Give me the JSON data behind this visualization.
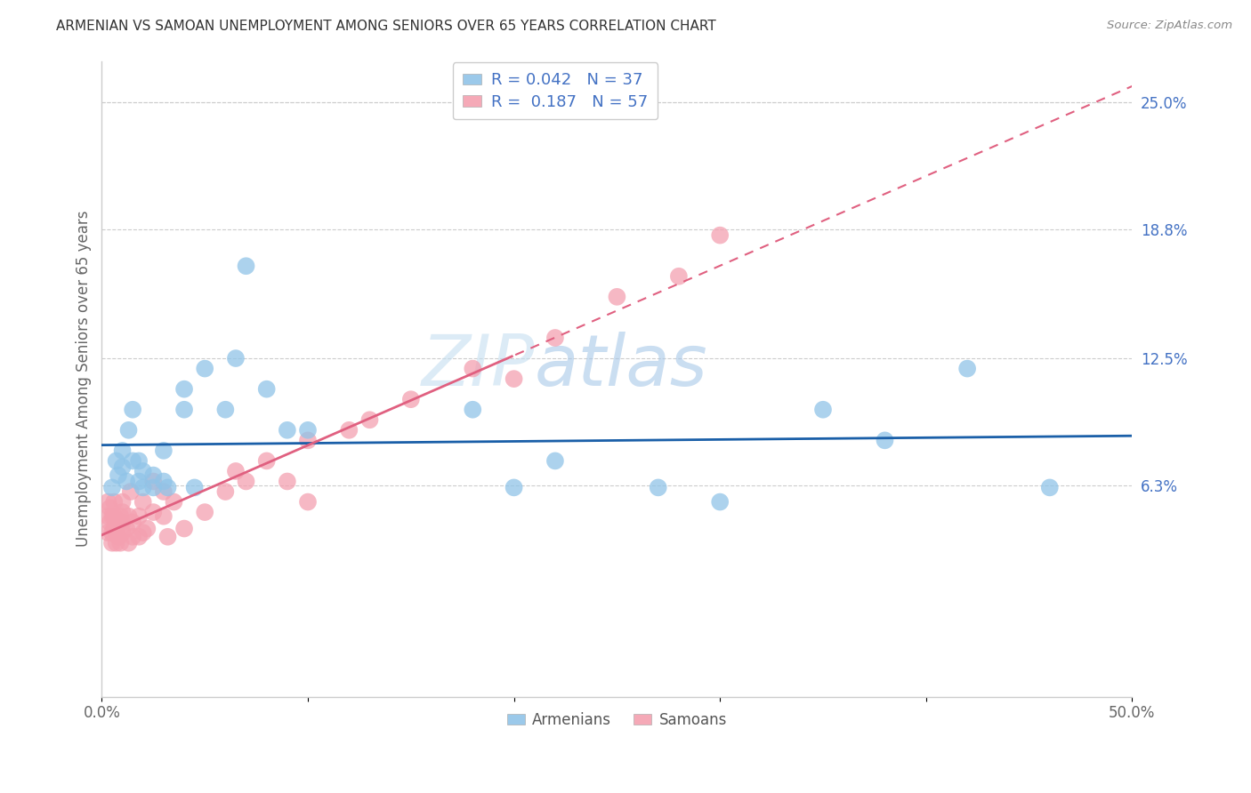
{
  "title": "ARMENIAN VS SAMOAN UNEMPLOYMENT AMONG SENIORS OVER 65 YEARS CORRELATION CHART",
  "source": "Source: ZipAtlas.com",
  "ylabel": "Unemployment Among Seniors over 65 years",
  "xlim": [
    0.0,
    0.5
  ],
  "ylim": [
    -0.04,
    0.27
  ],
  "ytick_labels_right": [
    "25.0%",
    "18.8%",
    "12.5%",
    "6.3%"
  ],
  "ytick_values_right": [
    0.25,
    0.188,
    0.125,
    0.063
  ],
  "legend_armenian_R": "0.042",
  "legend_armenian_N": "37",
  "legend_samoan_R": "0.187",
  "legend_samoan_N": "57",
  "armenian_color": "#90c4e8",
  "samoan_color": "#f4a0b0",
  "armenian_line_color": "#1a5fa8",
  "samoan_line_color": "#e06080",
  "watermark_color": "#d8e8f5",
  "armenian_x": [
    0.005,
    0.007,
    0.008,
    0.01,
    0.01,
    0.012,
    0.013,
    0.015,
    0.015,
    0.018,
    0.018,
    0.02,
    0.02,
    0.025,
    0.025,
    0.03,
    0.03,
    0.032,
    0.04,
    0.04,
    0.045,
    0.05,
    0.06,
    0.065,
    0.07,
    0.08,
    0.09,
    0.1,
    0.18,
    0.2,
    0.22,
    0.27,
    0.3,
    0.35,
    0.38,
    0.42,
    0.46
  ],
  "armenian_y": [
    0.062,
    0.075,
    0.068,
    0.072,
    0.08,
    0.065,
    0.09,
    0.075,
    0.1,
    0.065,
    0.075,
    0.062,
    0.07,
    0.062,
    0.068,
    0.065,
    0.08,
    0.062,
    0.1,
    0.11,
    0.062,
    0.12,
    0.1,
    0.125,
    0.17,
    0.11,
    0.09,
    0.09,
    0.1,
    0.062,
    0.075,
    0.062,
    0.055,
    0.1,
    0.085,
    0.12,
    0.062
  ],
  "samoan_x": [
    0.003,
    0.003,
    0.003,
    0.004,
    0.004,
    0.005,
    0.005,
    0.005,
    0.006,
    0.006,
    0.006,
    0.007,
    0.007,
    0.007,
    0.008,
    0.008,
    0.009,
    0.009,
    0.01,
    0.01,
    0.01,
    0.01,
    0.012,
    0.013,
    0.013,
    0.014,
    0.015,
    0.015,
    0.018,
    0.018,
    0.02,
    0.02,
    0.022,
    0.025,
    0.025,
    0.03,
    0.03,
    0.032,
    0.035,
    0.04,
    0.05,
    0.06,
    0.065,
    0.07,
    0.08,
    0.09,
    0.1,
    0.1,
    0.12,
    0.13,
    0.15,
    0.18,
    0.2,
    0.22,
    0.25,
    0.28,
    0.3
  ],
  "samoan_y": [
    0.055,
    0.048,
    0.04,
    0.052,
    0.045,
    0.048,
    0.04,
    0.035,
    0.042,
    0.048,
    0.055,
    0.035,
    0.04,
    0.045,
    0.038,
    0.044,
    0.035,
    0.048,
    0.04,
    0.045,
    0.05,
    0.055,
    0.042,
    0.035,
    0.048,
    0.06,
    0.038,
    0.045,
    0.038,
    0.048,
    0.04,
    0.055,
    0.042,
    0.05,
    0.065,
    0.048,
    0.06,
    0.038,
    0.055,
    0.042,
    0.05,
    0.06,
    0.07,
    0.065,
    0.075,
    0.065,
    0.055,
    0.085,
    0.09,
    0.095,
    0.105,
    0.12,
    0.115,
    0.135,
    0.155,
    0.165,
    0.185
  ]
}
